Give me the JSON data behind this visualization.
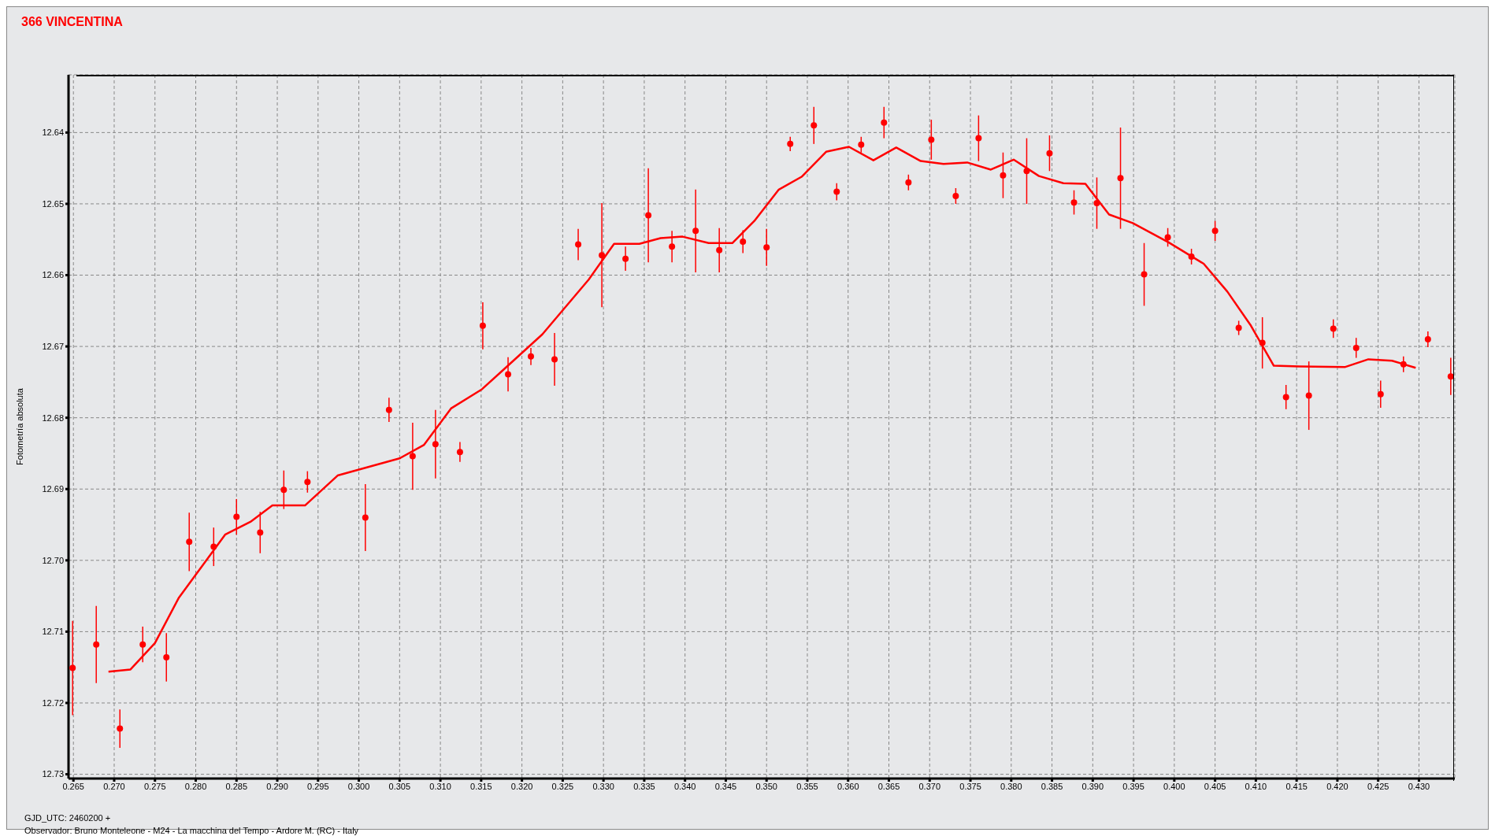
{
  "chart_data": {
    "type": "scatter",
    "title": "366 VINCENTINA",
    "ylabel": "Fotometría absoluta",
    "annotations": [
      "GJD_UTC: 2460200 +",
      "Observador: Bruno Monteleone - M24 - La macchina del Tempo - Ardore M. (RC) - Italy"
    ],
    "xlim": [
      0.2644,
      0.4344
    ],
    "ylim": [
      12.7306,
      12.6319
    ],
    "xticks": [
      {
        "value": 0.265,
        "label": "0.265"
      },
      {
        "value": 0.27,
        "label": "0.270"
      },
      {
        "value": 0.275,
        "label": "0.275"
      },
      {
        "value": 0.28,
        "label": "0.280"
      },
      {
        "value": 0.285,
        "label": "0.285"
      },
      {
        "value": 0.29,
        "label": "0.290"
      },
      {
        "value": 0.295,
        "label": "0.295"
      },
      {
        "value": 0.3,
        "label": "0.300"
      },
      {
        "value": 0.305,
        "label": "0.305"
      },
      {
        "value": 0.31,
        "label": "0.310"
      },
      {
        "value": 0.315,
        "label": "0.315"
      },
      {
        "value": 0.32,
        "label": "0.320"
      },
      {
        "value": 0.325,
        "label": "0.325"
      },
      {
        "value": 0.33,
        "label": "0.330"
      },
      {
        "value": 0.335,
        "label": "0.335"
      },
      {
        "value": 0.34,
        "label": "0.340"
      },
      {
        "value": 0.345,
        "label": "0.345"
      },
      {
        "value": 0.35,
        "label": "0.350"
      },
      {
        "value": 0.355,
        "label": "0.355"
      },
      {
        "value": 0.36,
        "label": "0.360"
      },
      {
        "value": 0.365,
        "label": "0.365"
      },
      {
        "value": 0.37,
        "label": "0.370"
      },
      {
        "value": 0.375,
        "label": "0.375"
      },
      {
        "value": 0.38,
        "label": "0.380"
      },
      {
        "value": 0.385,
        "label": "0.385"
      },
      {
        "value": 0.39,
        "label": "0.390"
      },
      {
        "value": 0.395,
        "label": "0.395"
      },
      {
        "value": 0.4,
        "label": "0.400"
      },
      {
        "value": 0.405,
        "label": "0.405"
      },
      {
        "value": 0.41,
        "label": "0.410"
      },
      {
        "value": 0.415,
        "label": "0.415"
      },
      {
        "value": 0.42,
        "label": "0.420"
      },
      {
        "value": 0.425,
        "label": "0.425"
      },
      {
        "value": 0.43,
        "label": "0.430"
      }
    ],
    "yticks": [
      {
        "value": 12.64,
        "label": "12.64"
      },
      {
        "value": 12.65,
        "label": "12.65"
      },
      {
        "value": 12.66,
        "label": "12.66"
      },
      {
        "value": 12.67,
        "label": "12.67"
      },
      {
        "value": 12.68,
        "label": "12.68"
      },
      {
        "value": 12.69,
        "label": "12.69"
      },
      {
        "value": 12.7,
        "label": "12.70"
      },
      {
        "value": 12.71,
        "label": "12.71"
      },
      {
        "value": 12.72,
        "label": "12.72"
      },
      {
        "value": 12.73,
        "label": "12.73"
      }
    ],
    "grid": true,
    "series": [
      {
        "marker": "circle",
        "color": "#ff0000",
        "x": [
          0.2649,
          0.2678,
          0.2707,
          0.2735,
          0.2764,
          0.2792,
          0.2822,
          0.285,
          0.2879,
          0.2908,
          0.2937,
          0.3008,
          0.3037,
          0.3066,
          0.3094,
          0.3124,
          0.3152,
          0.3183,
          0.3211,
          0.324,
          0.3269,
          0.3298,
          0.3327,
          0.3355,
          0.3384,
          0.3413,
          0.3442,
          0.3471,
          0.35,
          0.3529,
          0.3558,
          0.3586,
          0.3616,
          0.3644,
          0.3674,
          0.3702,
          0.3732,
          0.376,
          0.379,
          0.3819,
          0.3847,
          0.3877,
          0.3905,
          0.3934,
          0.3963,
          0.3992,
          0.4021,
          0.405,
          0.4079,
          0.4108,
          0.4137,
          0.4165,
          0.4195,
          0.4223,
          0.4253,
          0.4281,
          0.4311,
          0.4339
        ],
        "values": [
          12.7151,
          12.7118,
          12.7236,
          12.7118,
          12.7136,
          12.6974,
          12.6981,
          12.6939,
          12.6961,
          12.6901,
          12.689,
          12.694,
          12.6789,
          12.6854,
          12.6837,
          12.6848,
          12.6671,
          12.6739,
          12.6714,
          12.6718,
          12.6557,
          12.6572,
          12.6577,
          12.6516,
          12.656,
          12.6538,
          12.6565,
          12.6553,
          12.6561,
          12.6416,
          12.639,
          12.6483,
          12.6417,
          12.6386,
          12.647,
          12.641,
          12.6489,
          12.6408,
          12.646,
          12.6454,
          12.6429,
          12.6498,
          12.6499,
          12.6464,
          12.6599,
          12.6547,
          12.6574,
          12.6538,
          12.6674,
          12.6695,
          12.6771,
          12.6769,
          12.6675,
          12.6702,
          12.6767,
          12.6725,
          12.669,
          12.6742
        ],
        "errors": [
          0.0066,
          0.0054,
          0.0027,
          0.0025,
          0.0034,
          0.0041,
          0.0027,
          0.0025,
          0.0029,
          0.0027,
          0.0015,
          0.0047,
          0.0017,
          0.0047,
          0.0048,
          0.0014,
          0.0033,
          0.0024,
          0.0012,
          0.0037,
          0.0022,
          0.0073,
          0.0017,
          0.0066,
          0.0022,
          0.0058,
          0.0031,
          0.0016,
          0.0026,
          0.001,
          0.0026,
          0.0012,
          0.0011,
          0.0022,
          0.0011,
          0.0028,
          0.0011,
          0.0032,
          0.0032,
          0.0046,
          0.0025,
          0.0017,
          0.0036,
          0.0071,
          0.0044,
          0.0013,
          0.0011,
          0.0014,
          0.001,
          0.0036,
          0.0017,
          0.0048,
          0.0013,
          0.0014,
          0.0019,
          0.0011,
          0.0011,
          0.0026
        ]
      },
      {
        "type": "line",
        "color": "#ff0000",
        "line_style": "solid",
        "x": [
          0.2693,
          0.272,
          0.275,
          0.2779,
          0.2836,
          0.2867,
          0.2894,
          0.2934,
          0.2974,
          0.305,
          0.308,
          0.3113,
          0.3151,
          0.3177,
          0.3225,
          0.3282,
          0.3313,
          0.3344,
          0.337,
          0.3397,
          0.3429,
          0.3458,
          0.3485,
          0.3515,
          0.3543,
          0.3573,
          0.3601,
          0.3631,
          0.3659,
          0.3689,
          0.3717,
          0.3746,
          0.3775,
          0.3803,
          0.3834,
          0.3864,
          0.3891,
          0.392,
          0.3949,
          0.3993,
          0.4036,
          0.4065,
          0.4094,
          0.4122,
          0.4153,
          0.4209,
          0.4238,
          0.4267,
          0.4296
        ],
        "values": [
          12.7156,
          12.7153,
          12.7116,
          12.7053,
          12.6964,
          12.6946,
          12.6923,
          12.6923,
          12.6881,
          12.6857,
          12.6838,
          12.6787,
          12.676,
          12.6733,
          12.6683,
          12.6606,
          12.6556,
          12.6556,
          12.6548,
          12.6546,
          12.6555,
          12.6555,
          12.6524,
          12.648,
          12.6462,
          12.6427,
          12.642,
          12.6439,
          12.6421,
          12.644,
          12.6444,
          12.6442,
          12.6452,
          12.6438,
          12.6461,
          12.6471,
          12.6472,
          12.6515,
          12.6527,
          12.6554,
          12.6584,
          12.6623,
          12.6671,
          12.6727,
          12.6728,
          12.6729,
          12.6718,
          12.672,
          12.673
        ]
      }
    ]
  }
}
